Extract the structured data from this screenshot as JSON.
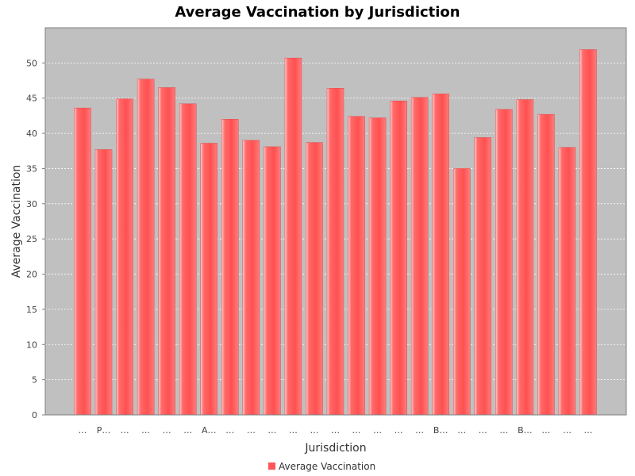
{
  "chart_data": {
    "type": "bar",
    "title": "Average Vaccination by Jurisdiction",
    "xlabel": "Jurisdiction",
    "ylabel": "Average Vaccination",
    "ylim": [
      0,
      55
    ],
    "yticks": [
      0,
      5,
      10,
      15,
      20,
      25,
      30,
      35,
      40,
      45,
      50
    ],
    "grid": true,
    "legend_position": "bottom",
    "categories": [
      "…",
      "P…",
      "…",
      "…",
      "…",
      "…",
      "A…",
      "…",
      "…",
      "…",
      "…",
      "…",
      "…",
      "…",
      "…",
      "…",
      "…",
      "B…",
      "…",
      "…",
      "…",
      "B…",
      "…",
      "…",
      "…"
    ],
    "series": [
      {
        "name": "Average Vaccination",
        "color": "#ff5555",
        "values": [
          43.6,
          37.7,
          44.9,
          47.7,
          46.5,
          44.2,
          38.6,
          42.0,
          39.0,
          38.1,
          50.7,
          38.7,
          46.4,
          42.4,
          42.2,
          44.6,
          45.1,
          45.6,
          35.0,
          39.4,
          43.4,
          44.8,
          42.7,
          38.0,
          51.9
        ]
      }
    ]
  }
}
